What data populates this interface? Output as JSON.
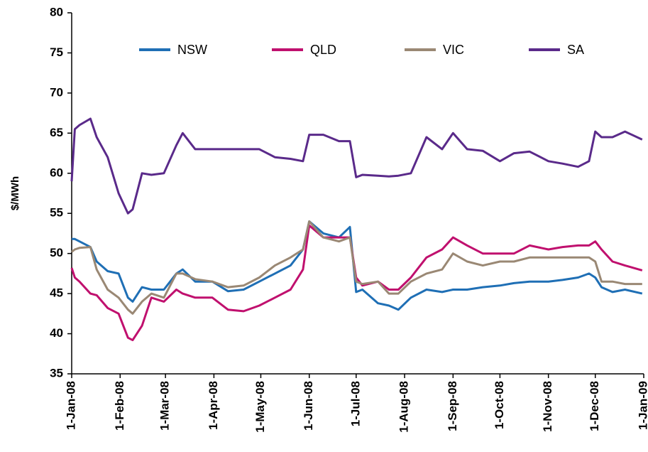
{
  "chart_data": {
    "type": "line",
    "y_label": "$/MWh",
    "legend": "top",
    "x": [
      "2008-01-01",
      "2008-01-03",
      "2008-01-06",
      "2008-01-13",
      "2008-01-17",
      "2008-01-24",
      "2008-01-31",
      "2008-02-06",
      "2008-02-09",
      "2008-02-15",
      "2008-02-21",
      "2008-02-29",
      "2008-03-08",
      "2008-03-12",
      "2008-03-20",
      "2008-03-31",
      "2008-04-10",
      "2008-04-20",
      "2008-04-30",
      "2008-05-10",
      "2008-05-20",
      "2008-05-28",
      "2008-06-01",
      "2008-06-10",
      "2008-06-20",
      "2008-06-27",
      "2008-07-01",
      "2008-07-05",
      "2008-07-15",
      "2008-07-22",
      "2008-07-28",
      "2008-08-05",
      "2008-08-15",
      "2008-08-25",
      "2008-09-01",
      "2008-09-10",
      "2008-09-20",
      "2008-10-01",
      "2008-10-10",
      "2008-10-20",
      "2008-11-01",
      "2008-11-10",
      "2008-11-20",
      "2008-11-27",
      "2008-12-01",
      "2008-12-05",
      "2008-12-12",
      "2008-12-20",
      "2008-12-31"
    ],
    "series": [
      {
        "name": "NSW",
        "color": "#1f6fb5",
        "values": [
          51.8,
          51.8,
          51.5,
          50.8,
          49,
          47.8,
          47.5,
          44.5,
          44,
          45.8,
          45.5,
          45.5,
          47.5,
          48,
          46.5,
          46.5,
          45.3,
          45.5,
          46.5,
          47.5,
          48.5,
          50.5,
          54,
          52.5,
          52,
          53.3,
          45.2,
          45.5,
          43.8,
          43.5,
          43,
          44.5,
          45.5,
          45.2,
          45.5,
          45.5,
          45.8,
          46,
          46.3,
          46.5,
          46.5,
          46.7,
          47,
          47.5,
          47,
          45.8,
          45.2,
          45.5,
          45
        ]
      },
      {
        "name": "QLD",
        "color": "#c0106e",
        "values": [
          48.2,
          47,
          46.5,
          45,
          44.8,
          43.2,
          42.5,
          39.5,
          39.2,
          41,
          44.5,
          44,
          45.5,
          45,
          44.5,
          44.5,
          43,
          42.8,
          43.5,
          44.5,
          45.5,
          48,
          53.5,
          52,
          52,
          52,
          47,
          46,
          46.5,
          45.5,
          45.5,
          47,
          49.5,
          50.5,
          52,
          51,
          50,
          50,
          50,
          51,
          50.5,
          50.8,
          51,
          51,
          51.5,
          50.5,
          49,
          48.5,
          47.9
        ]
      },
      {
        "name": "VIC",
        "color": "#9a8874",
        "values": [
          50.2,
          50.5,
          50.7,
          50.8,
          48,
          45.5,
          44.5,
          43,
          42.5,
          44,
          45,
          44.5,
          47.5,
          47.5,
          46.8,
          46.5,
          45.8,
          46,
          47,
          48.5,
          49.5,
          50.5,
          54,
          52,
          51.5,
          52,
          46.5,
          46.2,
          46.5,
          45,
          45,
          46.5,
          47.5,
          48,
          50,
          49,
          48.5,
          49,
          49,
          49.5,
          49.5,
          49.5,
          49.5,
          49.5,
          49,
          46.5,
          46.5,
          46.2,
          46.2
        ]
      },
      {
        "name": "SA",
        "color": "#5a2a8a",
        "values": [
          59,
          65.5,
          66,
          66.8,
          64.5,
          62,
          57.5,
          55,
          55.5,
          60,
          59.8,
          60,
          63.5,
          65,
          63,
          63,
          63,
          63,
          63,
          62,
          61.8,
          61.5,
          64.8,
          64.8,
          64,
          64,
          59.5,
          59.8,
          59.7,
          59.6,
          59.7,
          60,
          64.5,
          63,
          65,
          63,
          62.8,
          61.5,
          62.5,
          62.7,
          61.5,
          61.2,
          60.8,
          61.5,
          65.2,
          64.5,
          64.5,
          65.2,
          64.2
        ]
      }
    ],
    "xlim": [
      "2008-01-01",
      "2009-01-01"
    ],
    "xticks": [
      {
        "value": "2008-01-01",
        "label": "1-Jan-08"
      },
      {
        "value": "2008-02-01",
        "label": "1-Feb-08"
      },
      {
        "value": "2008-03-01",
        "label": "1-Mar-08"
      },
      {
        "value": "2008-04-01",
        "label": "1-Apr-08"
      },
      {
        "value": "2008-05-01",
        "label": "1-May-08"
      },
      {
        "value": "2008-06-01",
        "label": "1-Jun-08"
      },
      {
        "value": "2008-07-01",
        "label": "1-Jul-08"
      },
      {
        "value": "2008-08-01",
        "label": "1-Aug-08"
      },
      {
        "value": "2008-09-01",
        "label": "1-Sep-08"
      },
      {
        "value": "2008-10-01",
        "label": "1-Oct-08"
      },
      {
        "value": "2008-11-01",
        "label": "1-Nov-08"
      },
      {
        "value": "2008-12-01",
        "label": "1-Dec-08"
      },
      {
        "value": "2009-01-01",
        "label": "1-Jan-09"
      }
    ],
    "ylim": [
      35,
      80
    ],
    "yticks": [
      35,
      40,
      45,
      50,
      55,
      60,
      65,
      70,
      75,
      80
    ]
  }
}
